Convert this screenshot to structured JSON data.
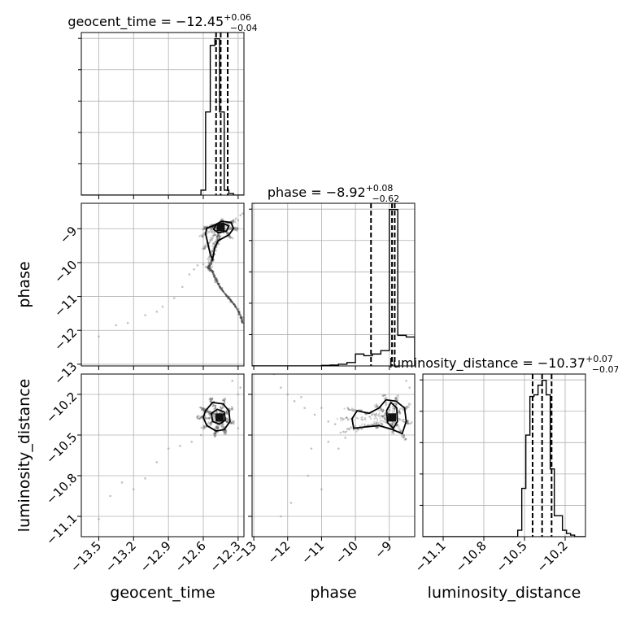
{
  "chart_data": {
    "type": "scatter",
    "subtype": "corner-plot",
    "grid": true,
    "parameters": [
      {
        "name": "geocent_time",
        "label": "geocent_time",
        "range": [
          -13.65,
          -12.25
        ],
        "ticks": [
          -13.5,
          -13.2,
          -12.9,
          -12.6,
          -12.3
        ],
        "tick_labels": [
          "−13.5",
          "−13.2",
          "−12.9",
          "−12.6",
          "−12.3"
        ],
        "title_main": "geocent_time = −12.45",
        "title_sup": "+0.06",
        "title_sub": "−0.04",
        "quantiles": [
          -12.49,
          -12.45,
          -12.39
        ],
        "hist": {
          "edges": [
            -12.62,
            -12.58,
            -12.54,
            -12.5,
            -12.46,
            -12.42,
            -12.38,
            -12.34,
            -12.3
          ],
          "counts": [
            0.03,
            0.5,
            0.9,
            0.94,
            0.5,
            0.03,
            0.01,
            0.0
          ]
        }
      },
      {
        "name": "phase",
        "label": "phase",
        "range": [
          -13.05,
          -8.25
        ],
        "ticks": [
          -13,
          -12,
          -11,
          -10,
          -9
        ],
        "tick_labels": [
          "−13",
          "−12",
          "−11",
          "−10",
          "−9"
        ],
        "title_main": "phase = −8.92",
        "title_sup": "+0.08",
        "title_sub": "−0.62",
        "quantiles": [
          -9.54,
          -8.92,
          -8.84
        ],
        "hist": {
          "edges": [
            -11.0,
            -10.75,
            -10.5,
            -10.25,
            -10.0,
            -9.75,
            -9.5,
            -9.25,
            -9.0,
            -8.75,
            -8.5,
            -8.25
          ],
          "counts": [
            0.003,
            0.005,
            0.01,
            0.02,
            0.07,
            0.06,
            0.07,
            0.09,
            0.92,
            0.18,
            0.17
          ]
        }
      },
      {
        "name": "luminosity_distance",
        "label": "luminosity_distance",
        "range": [
          -11.25,
          -10.05
        ],
        "ticks": [
          -11.1,
          -10.8,
          -10.5,
          -10.2
        ],
        "tick_labels": [
          "−11.1",
          "−10.8",
          "−10.5",
          "−10.2"
        ],
        "title_main": "luminosity_distance = −10.37",
        "title_sup": "+0.07",
        "title_sub": "−0.07",
        "quantiles": [
          -10.44,
          -10.37,
          -10.3
        ],
        "hist": {
          "edges": [
            -10.55,
            -10.52,
            -10.49,
            -10.46,
            -10.43,
            -10.4,
            -10.37,
            -10.34,
            -10.31,
            -10.28,
            -10.25,
            -10.22,
            -10.19,
            -10.16,
            -10.13
          ],
          "counts": [
            0.04,
            0.3,
            0.63,
            0.87,
            0.88,
            0.94,
            0.97,
            0.88,
            0.42,
            0.13,
            0.13,
            0.04,
            0.02,
            0.01
          ]
        }
      }
    ],
    "pairs": [
      {
        "x": "geocent_time",
        "y": "phase",
        "peak": [
          -12.45,
          -8.95
        ],
        "contours": [
          [
            [
              -12.52,
              -8.92
            ],
            [
              -12.44,
              -8.78
            ],
            [
              -12.36,
              -8.82
            ],
            [
              -12.34,
              -9.0
            ],
            [
              -12.38,
              -9.18
            ],
            [
              -12.47,
              -9.35
            ],
            [
              -12.5,
              -9.55
            ],
            [
              -12.52,
              -9.9
            ],
            [
              -12.54,
              -9.75
            ],
            [
              -12.56,
              -9.45
            ],
            [
              -12.58,
              -9.15
            ],
            [
              -12.57,
              -8.98
            ]
          ],
          [
            [
              -12.49,
              -8.88
            ],
            [
              -12.43,
              -8.84
            ],
            [
              -12.38,
              -8.92
            ],
            [
              -12.4,
              -9.07
            ],
            [
              -12.47,
              -9.12
            ],
            [
              -12.51,
              -9.02
            ]
          ]
        ],
        "trail": [
          [
            -12.52,
            -9.9
          ],
          [
            -12.54,
            -10.05
          ],
          [
            -12.56,
            -10.15
          ],
          [
            -12.52,
            -10.25
          ],
          [
            -12.5,
            -10.45
          ],
          [
            -12.47,
            -10.65
          ],
          [
            -12.43,
            -10.85
          ],
          [
            -12.38,
            -11.05
          ],
          [
            -12.33,
            -11.25
          ],
          [
            -12.28,
            -11.55
          ],
          [
            -12.26,
            -11.8
          ]
        ],
        "scatter": [
          [
            -13.5,
            -12.18
          ],
          [
            -13.35,
            -11.85
          ],
          [
            -13.25,
            -11.78
          ],
          [
            -13.1,
            -11.55
          ],
          [
            -13.0,
            -11.45
          ],
          [
            -12.95,
            -11.3
          ],
          [
            -12.85,
            -11.05
          ],
          [
            -12.78,
            -10.72
          ],
          [
            -12.72,
            -10.35
          ],
          [
            -12.68,
            -10.2
          ],
          [
            -12.65,
            -10.08
          ],
          [
            -12.6,
            -10.05
          ],
          [
            -12.58,
            -10.12
          ],
          [
            -12.32,
            -8.7
          ],
          [
            -12.28,
            -8.6
          ],
          [
            -12.26,
            -8.55
          ],
          [
            -12.3,
            -8.75
          ]
        ]
      },
      {
        "x": "geocent_time",
        "y": "luminosity_distance",
        "peak": [
          -12.46,
          -10.37
        ],
        "contours": [
          [
            [
              -12.58,
              -10.32
            ],
            [
              -12.52,
              -10.26
            ],
            [
              -12.43,
              -10.27
            ],
            [
              -12.38,
              -10.32
            ],
            [
              -12.37,
              -10.4
            ],
            [
              -12.42,
              -10.46
            ],
            [
              -12.49,
              -10.47
            ],
            [
              -12.57,
              -10.43
            ],
            [
              -12.6,
              -10.37
            ]
          ],
          [
            [
              -12.53,
              -10.34
            ],
            [
              -12.48,
              -10.31
            ],
            [
              -12.42,
              -10.33
            ],
            [
              -12.41,
              -10.39
            ],
            [
              -12.46,
              -10.42
            ],
            [
              -12.52,
              -10.4
            ]
          ]
        ],
        "scatter": [
          [
            -13.5,
            -11.12
          ],
          [
            -13.4,
            -10.95
          ],
          [
            -13.3,
            -10.85
          ],
          [
            -13.2,
            -10.9
          ],
          [
            -13.1,
            -10.82
          ],
          [
            -13.0,
            -10.7
          ],
          [
            -12.9,
            -10.6
          ],
          [
            -12.8,
            -10.58
          ],
          [
            -12.7,
            -10.55
          ],
          [
            -12.62,
            -10.5
          ],
          [
            -12.3,
            -10.2
          ],
          [
            -12.28,
            -10.15
          ],
          [
            -12.35,
            -10.1
          ],
          [
            -12.3,
            -10.45
          ]
        ]
      },
      {
        "x": "phase",
        "y": "luminosity_distance",
        "peak": [
          -8.92,
          -10.37
        ],
        "contours": [
          [
            [
              -10.1,
              -10.38
            ],
            [
              -9.95,
              -10.32
            ],
            [
              -9.6,
              -10.34
            ],
            [
              -9.3,
              -10.3
            ],
            [
              -9.1,
              -10.24
            ],
            [
              -8.8,
              -10.25
            ],
            [
              -8.55,
              -10.3
            ],
            [
              -8.5,
              -10.4
            ],
            [
              -8.62,
              -10.49
            ],
            [
              -8.9,
              -10.46
            ],
            [
              -9.3,
              -10.43
            ],
            [
              -9.7,
              -10.44
            ],
            [
              -10.05,
              -10.45
            ]
          ],
          [
            [
              -9.08,
              -10.32
            ],
            [
              -8.95,
              -10.26
            ],
            [
              -8.78,
              -10.3
            ],
            [
              -8.76,
              -10.4
            ],
            [
              -8.88,
              -10.45
            ],
            [
              -9.05,
              -10.41
            ]
          ]
        ],
        "scatter": [
          [
            -12.4,
            -10.05
          ],
          [
            -12.2,
            -10.15
          ],
          [
            -12.0,
            -10.2
          ],
          [
            -11.8,
            -10.25
          ],
          [
            -11.6,
            -10.22
          ],
          [
            -11.5,
            -10.3
          ],
          [
            -11.2,
            -10.35
          ],
          [
            -11.0,
            -10.3
          ],
          [
            -10.8,
            -10.4
          ],
          [
            -10.6,
            -10.42
          ],
          [
            -12.2,
            -11.1
          ],
          [
            -11.9,
            -11.0
          ],
          [
            -11.4,
            -10.8
          ],
          [
            -11.0,
            -10.9
          ],
          [
            -10.8,
            -10.55
          ],
          [
            -11.3,
            -10.6
          ],
          [
            -10.5,
            -10.6
          ],
          [
            -10.3,
            -10.52
          ],
          [
            -8.4,
            -10.15
          ],
          [
            -8.5,
            -10.1
          ]
        ]
      }
    ]
  }
}
